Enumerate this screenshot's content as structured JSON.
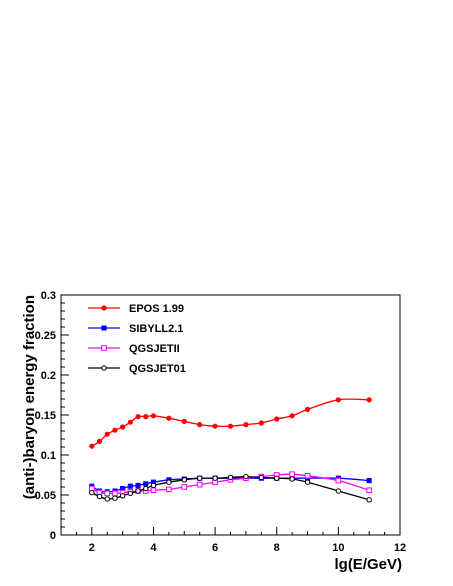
{
  "chart_data": {
    "type": "line",
    "title": "",
    "xlabel": "lg(E/GeV)",
    "ylabel": "(anti-)baryon energy fraction",
    "xlim": [
      1,
      12
    ],
    "ylim": [
      0,
      0.3
    ],
    "xticks": [
      2,
      4,
      6,
      8,
      10,
      12
    ],
    "yticks": [
      0,
      0.05,
      0.1,
      0.15,
      0.2,
      0.25,
      0.3
    ],
    "grid": false,
    "legend_position": "top-left",
    "series": [
      {
        "name": "EPOS 1.99",
        "color": "#ff0000",
        "marker": "filled-circle",
        "x": [
          2.0,
          2.25,
          2.5,
          2.75,
          3.0,
          3.25,
          3.5,
          3.75,
          4.0,
          4.5,
          5.0,
          5.5,
          6.0,
          6.5,
          7.0,
          7.5,
          8.0,
          8.5,
          9.0,
          10.0,
          11.0
        ],
        "values": [
          0.111,
          0.117,
          0.126,
          0.131,
          0.135,
          0.141,
          0.148,
          0.148,
          0.149,
          0.146,
          0.142,
          0.138,
          0.136,
          0.136,
          0.138,
          0.14,
          0.145,
          0.149,
          0.157,
          0.169,
          0.169
        ]
      },
      {
        "name": "SIBYLL2.1",
        "color": "#0000ff",
        "marker": "filled-square",
        "x": [
          2.0,
          2.25,
          2.5,
          2.75,
          3.0,
          3.25,
          3.5,
          3.75,
          4.0,
          4.5,
          5.0,
          5.5,
          6.0,
          6.5,
          7.0,
          7.5,
          8.0,
          8.5,
          9.0,
          10.0,
          11.0
        ],
        "values": [
          0.061,
          0.055,
          0.054,
          0.055,
          0.058,
          0.061,
          0.062,
          0.064,
          0.066,
          0.069,
          0.07,
          0.071,
          0.071,
          0.071,
          0.071,
          0.071,
          0.071,
          0.071,
          0.071,
          0.071,
          0.068
        ]
      },
      {
        "name": "QGSJETII",
        "color": "#ff00ff",
        "marker": "open-square",
        "x": [
          2.0,
          2.25,
          2.5,
          2.75,
          3.0,
          3.25,
          3.5,
          3.75,
          4.0,
          4.5,
          5.0,
          5.5,
          6.0,
          6.5,
          7.0,
          7.5,
          8.0,
          8.5,
          9.0,
          10.0,
          11.0
        ],
        "values": [
          0.058,
          0.053,
          0.052,
          0.052,
          0.053,
          0.054,
          0.055,
          0.055,
          0.056,
          0.057,
          0.06,
          0.063,
          0.066,
          0.069,
          0.071,
          0.073,
          0.075,
          0.076,
          0.074,
          0.068,
          0.056
        ]
      },
      {
        "name": "QGSJET01",
        "color": "#000000",
        "marker": "open-circle",
        "x": [
          2.0,
          2.25,
          2.5,
          2.75,
          3.0,
          3.25,
          3.5,
          3.75,
          4.0,
          4.5,
          5.0,
          5.5,
          6.0,
          6.5,
          7.0,
          7.5,
          8.0,
          8.5,
          9.0,
          10.0,
          11.0
        ],
        "values": [
          0.053,
          0.048,
          0.045,
          0.046,
          0.049,
          0.052,
          0.055,
          0.058,
          0.062,
          0.066,
          0.069,
          0.071,
          0.071,
          0.072,
          0.073,
          0.072,
          0.071,
          0.07,
          0.066,
          0.055,
          0.044
        ]
      }
    ]
  }
}
